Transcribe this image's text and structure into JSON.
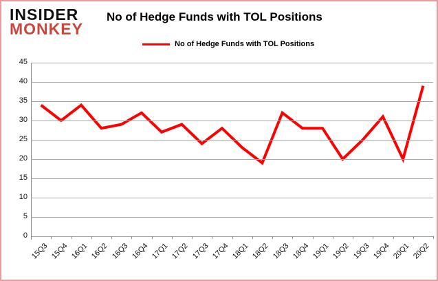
{
  "logo": {
    "line1": "INSIDER",
    "line2": "MONKEY"
  },
  "title": "No of Hedge Funds with TOL Positions",
  "legend": {
    "label": "No of Hedge Funds with TOL Positions"
  },
  "colors": {
    "line": "#ff0000",
    "logo_black": "#111111",
    "logo_red": "#c9463d",
    "gridline": "#a6a6a6",
    "axis": "#898989",
    "frame_border": "#e89c9c",
    "text": "#000000"
  },
  "chart_data": {
    "type": "line",
    "title": "No of Hedge Funds with TOL Positions",
    "categories": [
      "15Q3",
      "15Q4",
      "16Q1",
      "16Q2",
      "16Q3",
      "16Q4",
      "17Q1",
      "17Q2",
      "17Q3",
      "17Q4",
      "18Q1",
      "18Q2",
      "18Q3",
      "18Q4",
      "19Q1",
      "19Q2",
      "19Q3",
      "19Q4",
      "20Q1",
      "20Q2"
    ],
    "series": [
      {
        "name": "No of Hedge Funds with TOL Positions",
        "values": [
          34,
          30,
          34,
          28,
          29,
          32,
          27,
          29,
          24,
          28,
          23,
          19,
          32,
          28,
          28,
          20,
          25,
          31,
          20,
          39
        ]
      }
    ],
    "xlabel": "",
    "ylabel": "",
    "ylim": [
      0,
      45
    ],
    "yticks": [
      45,
      40,
      35,
      30,
      25,
      20,
      15,
      10,
      5,
      0
    ],
    "grid": true,
    "legend_position": "top"
  }
}
